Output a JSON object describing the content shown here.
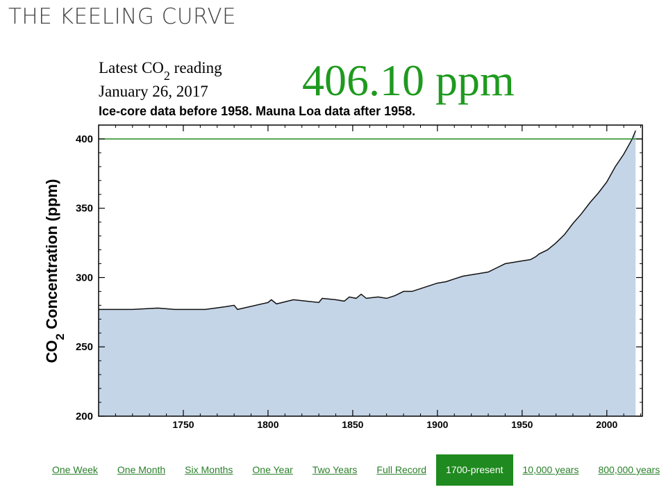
{
  "header": {
    "title": "THE KEELING CURVE"
  },
  "chart_data": {
    "type": "area",
    "reading_label": [
      "Latest CO",
      "2",
      " reading"
    ],
    "reading_date": "January 26, 2017",
    "reading_value": "406.10 ppm",
    "subtitle": "Ice-core data before 1958. Mauna Loa data after 1958.",
    "y_label": [
      "CO",
      "2",
      " Concentration (ppm)"
    ],
    "x": [
      1700,
      1720,
      1735,
      1745,
      1763,
      1775,
      1780,
      1782,
      1800,
      1802,
      1805,
      1815,
      1830,
      1832,
      1840,
      1845,
      1848,
      1852,
      1855,
      1858,
      1865,
      1870,
      1875,
      1880,
      1885,
      1890,
      1895,
      1900,
      1905,
      1910,
      1915,
      1920,
      1925,
      1930,
      1935,
      1940,
      1945,
      1950,
      1955,
      1958,
      1960,
      1965,
      1970,
      1975,
      1980,
      1985,
      1990,
      1995,
      2000,
      2005,
      2010,
      2015,
      2017
    ],
    "values": [
      277,
      277,
      278,
      277,
      277,
      279,
      280,
      277,
      282,
      284,
      281,
      284,
      282,
      285,
      284,
      283,
      286,
      285,
      288,
      285,
      286,
      285,
      287,
      290,
      290,
      292,
      294,
      296,
      297,
      299,
      301,
      302,
      303,
      304,
      307,
      310,
      311,
      312,
      313,
      315,
      317,
      320,
      325,
      331,
      339,
      346,
      354,
      361,
      369,
      380,
      389,
      400,
      406
    ],
    "color": "#c5d5e8",
    "line_color": "#111111",
    "reference_line": 400,
    "reference_color": "#1f8a1f",
    "xlim": [
      1700,
      2021
    ],
    "ylim": [
      200,
      410
    ],
    "xticks": [
      1750,
      1800,
      1850,
      1900,
      1950,
      2000
    ],
    "yticks": [
      200,
      250,
      300,
      350,
      400
    ],
    "xminorticks": [
      1710,
      1720,
      1730,
      1740,
      1760,
      1770,
      1780,
      1790,
      1810,
      1820,
      1830,
      1840,
      1860,
      1870,
      1880,
      1890,
      1910,
      1920,
      1930,
      1940,
      1960,
      1970,
      1980,
      1990,
      2010,
      2020
    ],
    "yminorticks": [
      210,
      220,
      230,
      240,
      260,
      270,
      280,
      290,
      310,
      320,
      330,
      340,
      360,
      370,
      380,
      390
    ]
  },
  "nav": {
    "items": [
      "One Week",
      "One Month",
      "Six Months",
      "One Year",
      "Two Years",
      "Full Record",
      "1700-present",
      "10,000 years",
      "800,000 years"
    ],
    "active_index": 6
  }
}
